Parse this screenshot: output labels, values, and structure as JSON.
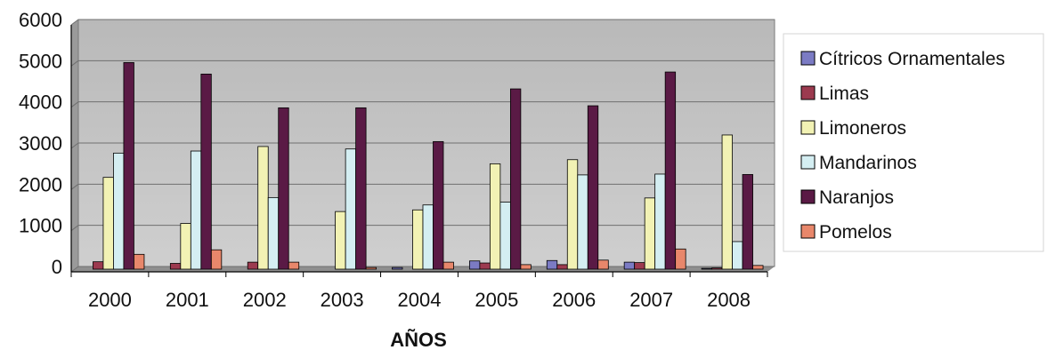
{
  "chart_data": {
    "type": "bar",
    "title": "",
    "xlabel": "AÑOS",
    "ylabel": "",
    "ylim": [
      0,
      6000
    ],
    "yticks": [
      0,
      1000,
      2000,
      3000,
      4000,
      5000,
      6000
    ],
    "grid": true,
    "legend": "right",
    "categories": [
      "2000",
      "2001",
      "2002",
      "2003",
      "2004",
      "2005",
      "2006",
      "2007",
      "2008"
    ],
    "series": [
      {
        "name": "Cítricos Ornamentales",
        "color": "#7b7bc4",
        "values": [
          0,
          0,
          0,
          0,
          40,
          200,
          210,
          170,
          20
        ]
      },
      {
        "name": "Limas",
        "color": "#9c3a4f",
        "values": [
          180,
          140,
          170,
          0,
          0,
          150,
          110,
          160,
          30
        ]
      },
      {
        "name": "Limoneros",
        "color": "#f2f2b4",
        "values": [
          2230,
          1110,
          2980,
          1400,
          1440,
          2560,
          2660,
          1730,
          3260
        ]
      },
      {
        "name": "Mandarinos",
        "color": "#d4eef2",
        "values": [
          2820,
          2870,
          1740,
          2920,
          1560,
          1630,
          2290,
          2310,
          670
        ]
      },
      {
        "name": "Naranjos",
        "color": "#5a1a45",
        "values": [
          5020,
          4740,
          3920,
          3920,
          3100,
          4380,
          3970,
          4790,
          2300
        ]
      },
      {
        "name": "Pomelos",
        "color": "#e8876b",
        "values": [
          360,
          470,
          170,
          40,
          170,
          110,
          220,
          490,
          90
        ]
      }
    ]
  }
}
